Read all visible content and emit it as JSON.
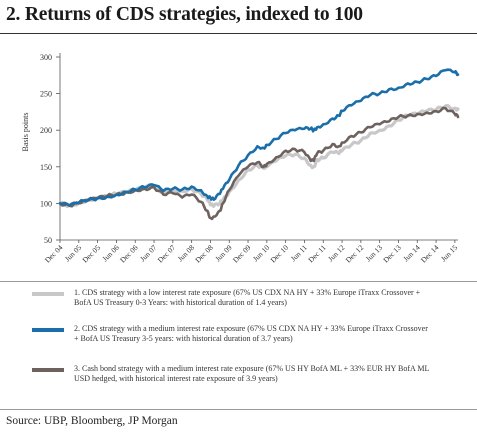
{
  "title": "2. Returns of CDS strategies, indexed to 100",
  "source": "Source: UBP, Bloomberg, JP Morgan",
  "chart_data": {
    "type": "line",
    "title": "2. Returns of CDS strategies, indexed to 100",
    "xlabel": "",
    "ylabel": "Basis points",
    "ylim": [
      50,
      300
    ],
    "yticks": [
      50,
      100,
      150,
      200,
      250,
      300
    ],
    "grid": false,
    "legend_position": "bottom",
    "x_tick_labels": [
      "Dec 04",
      "Jun 05",
      "Dec 05",
      "Jun 06",
      "Dec 06",
      "Jun 07",
      "Dec 07",
      "Jun 08",
      "Dec 08",
      "Jun 09",
      "Dec 09",
      "Jun 10",
      "Dec 10",
      "Jun 11",
      "Dec 11",
      "Jun 12",
      "Dec 12",
      "Jun 13",
      "Dec 13",
      "Jun 14",
      "Dec 14",
      "Jun 15"
    ],
    "x": [
      "Dec 04",
      "Mar 05",
      "Jun 05",
      "Sep 05",
      "Dec 05",
      "Mar 06",
      "Jun 06",
      "Sep 06",
      "Dec 06",
      "Mar 07",
      "Jun 07",
      "Sep 07",
      "Dec 07",
      "Mar 08",
      "Jun 08",
      "Sep 08",
      "Nov 08",
      "Dec 08",
      "Jan 09",
      "Mar 09",
      "Apr 09",
      "Jun 09",
      "Sep 09",
      "Dec 09",
      "Mar 10",
      "May 10",
      "Jun 10",
      "Sep 10",
      "Dec 10",
      "Mar 11",
      "Jun 11",
      "Aug 11",
      "Sep 11",
      "Oct 11",
      "Dec 11",
      "Mar 12",
      "May 12",
      "Jun 12",
      "Sep 12",
      "Dec 12",
      "Mar 13",
      "Jun 13",
      "Sep 13",
      "Dec 13",
      "Mar 14",
      "Jun 14",
      "Sep 14",
      "Dec 14",
      "Mar 15",
      "Jun 15",
      "Jul 15"
    ],
    "series": [
      {
        "name": "1. CDS strategy with a low interest rate exposure (67% US CDX NA HY + 33% Europe iTraxx Crossover + BofA US Treasury 0-3 Years: with historical duration of 1.4 years)",
        "color": "#c8c8c8",
        "values": [
          100,
          97,
          101,
          105,
          108,
          110,
          113,
          115,
          118,
          121,
          124,
          115,
          118,
          117,
          120,
          113,
          105,
          98,
          96,
          100,
          105,
          116,
          132,
          146,
          152,
          148,
          150,
          158,
          165,
          167,
          162,
          152,
          150,
          160,
          162,
          170,
          168,
          172,
          180,
          186,
          196,
          200,
          206,
          214,
          220,
          222,
          226,
          228,
          233,
          230,
          229
        ]
      },
      {
        "name": "2. CDS strategy with a medium interest rate exposure (67% US CDX NA HY + 33% Europe iTraxx Crossover + BofA US Treasury 3-5 years: with historical duration of 3.7 years)",
        "color": "#1a6faa",
        "values": [
          100,
          97,
          101,
          105,
          107,
          109,
          112,
          116,
          119,
          122,
          125,
          117,
          120,
          119,
          123,
          118,
          110,
          108,
          105,
          113,
          120,
          132,
          152,
          166,
          178,
          176,
          180,
          188,
          196,
          200,
          202,
          202,
          200,
          204,
          208,
          216,
          220,
          226,
          234,
          240,
          248,
          250,
          256,
          258,
          264,
          266,
          270,
          274,
          282,
          279,
          276
        ]
      },
      {
        "name": "3. Cash bond strategy with a medium interest rate exposure (67% US HY BofA ML + 33% EUR HY BofA ML USD hedged, with historical interest rate exposure of 3.9 years)",
        "color": "#6e625e",
        "values": [
          100,
          97,
          100,
          104,
          107,
          110,
          112,
          115,
          118,
          120,
          122,
          112,
          114,
          108,
          112,
          102,
          90,
          80,
          82,
          90,
          100,
          118,
          138,
          150,
          156,
          150,
          154,
          163,
          172,
          174,
          170,
          158,
          158,
          168,
          172,
          181,
          178,
          183,
          192,
          197,
          204,
          208,
          212,
          218,
          220,
          222,
          224,
          226,
          230,
          222,
          218
        ]
      }
    ]
  }
}
